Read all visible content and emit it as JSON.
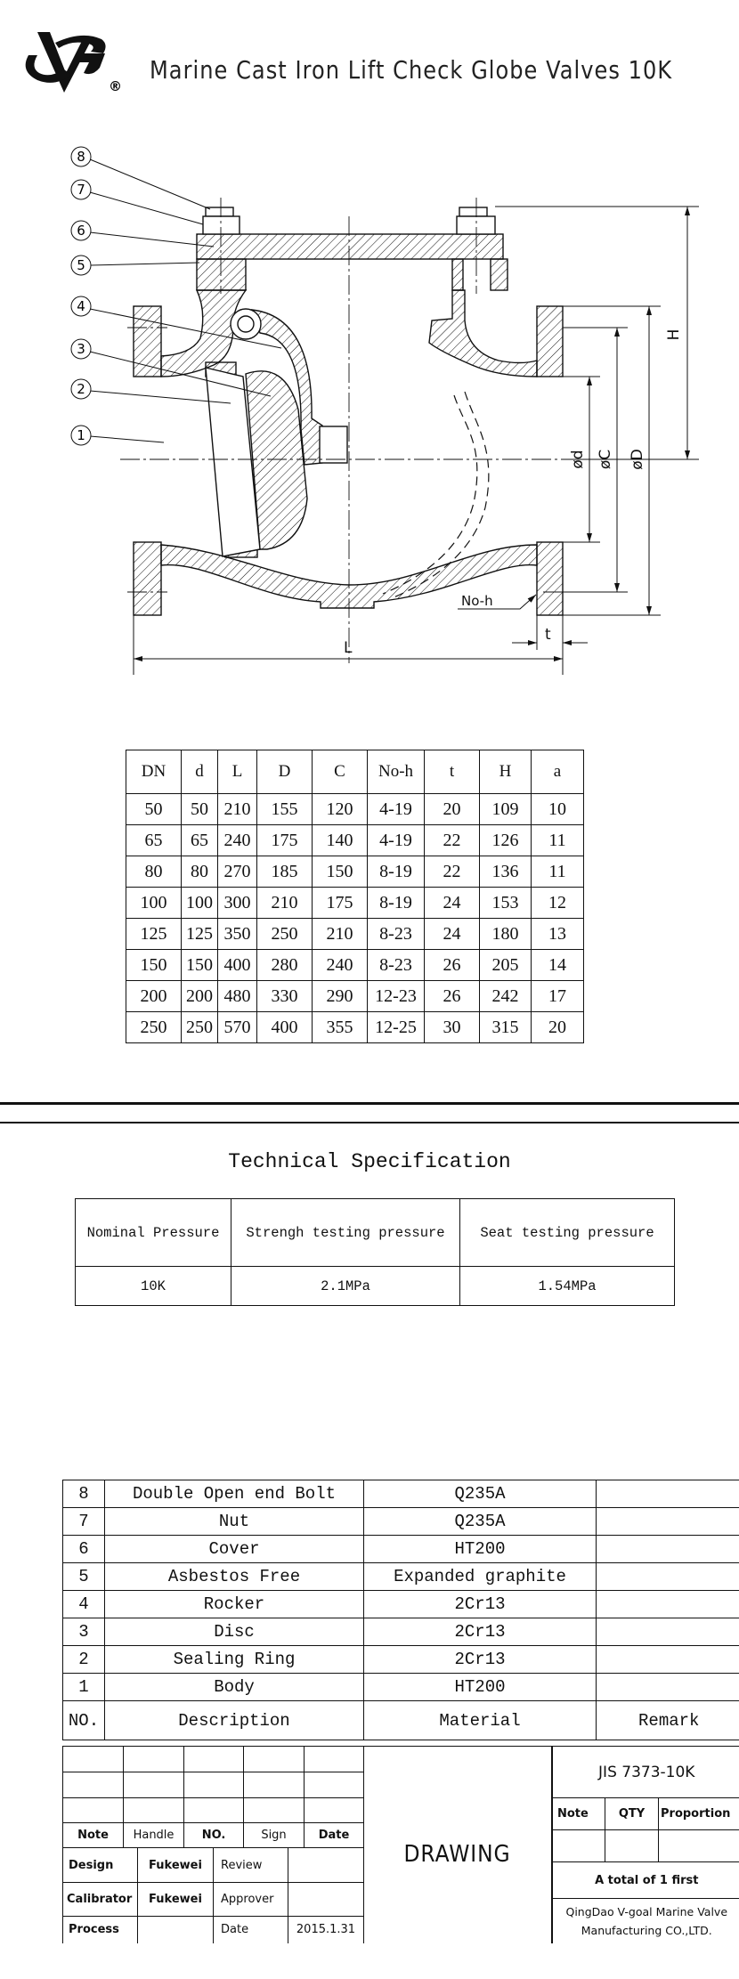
{
  "header": {
    "title": "Marine Cast Iron Lift Check Globe Valves 10K",
    "logo_mark": "®"
  },
  "drawing": {
    "callouts": [
      "8",
      "7",
      "6",
      "5",
      "4",
      "3",
      "2",
      "1"
    ],
    "labels": {
      "H": "H",
      "d": "ød",
      "C": "øC",
      "D": "øD",
      "noh": "No-h",
      "t": "t",
      "L": "L"
    }
  },
  "dimension_table": {
    "headers": [
      "DN",
      "d",
      "L",
      "D",
      "C",
      "No-h",
      "t",
      "H",
      "a"
    ],
    "rows": [
      [
        "50",
        "50",
        "210",
        "155",
        "120",
        "4-19",
        "20",
        "109",
        "10"
      ],
      [
        "65",
        "65",
        "240",
        "175",
        "140",
        "4-19",
        "22",
        "126",
        "11"
      ],
      [
        "80",
        "80",
        "270",
        "185",
        "150",
        "8-19",
        "22",
        "136",
        "11"
      ],
      [
        "100",
        "100",
        "300",
        "210",
        "175",
        "8-19",
        "24",
        "153",
        "12"
      ],
      [
        "125",
        "125",
        "350",
        "250",
        "210",
        "8-23",
        "24",
        "180",
        "13"
      ],
      [
        "150",
        "150",
        "400",
        "280",
        "240",
        "8-23",
        "26",
        "205",
        "14"
      ],
      [
        "200",
        "200",
        "480",
        "330",
        "290",
        "12-23",
        "26",
        "242",
        "17"
      ],
      [
        "250",
        "250",
        "570",
        "400",
        "355",
        "12-25",
        "30",
        "315",
        "20"
      ]
    ]
  },
  "spec": {
    "title": "Technical Specification",
    "headers": [
      "Nominal Pressure",
      "Strengh testing pressure",
      "Seat testing pressure"
    ],
    "values": [
      "10K",
      "2.1MPa",
      "1.54MPa"
    ]
  },
  "parts": {
    "rows": [
      {
        "no": "8",
        "description": "Double Open end Bolt",
        "material": "Q235A",
        "remark": ""
      },
      {
        "no": "7",
        "description": "Nut",
        "material": "Q235A",
        "remark": ""
      },
      {
        "no": "6",
        "description": "Cover",
        "material": "HT200",
        "remark": ""
      },
      {
        "no": "5",
        "description": "Asbestos Free",
        "material": "Expanded graphite",
        "remark": ""
      },
      {
        "no": "4",
        "description": "Rocker",
        "material": "2Cr13",
        "remark": ""
      },
      {
        "no": "3",
        "description": "Disc",
        "material": "2Cr13",
        "remark": ""
      },
      {
        "no": "2",
        "description": "Sealing Ring",
        "material": "2Cr13",
        "remark": ""
      },
      {
        "no": "1",
        "description": "Body",
        "material": "HT200",
        "remark": ""
      }
    ],
    "header": {
      "no": "NO.",
      "description": "Description",
      "material": "Material",
      "remark": "Remark"
    }
  },
  "title_block": {
    "revision_headers": [
      "Note",
      "Handle",
      "NO.",
      "Sign",
      "Date"
    ],
    "design_label": "Design",
    "design_name": "Fukewei",
    "review_label": "Review",
    "calibrator_label": "Calibrator",
    "calibrator_name": "Fukewei",
    "approver_label": "Approver",
    "process_label": "Process",
    "date_label": "Date",
    "date_value": "2015.1.31",
    "drawing_label": "DRAWING",
    "standard": "JIS 7373-10K",
    "info_headers": [
      "Note",
      "QTY",
      "Proportion"
    ],
    "total": "A total of 1 first",
    "company_line1": "QingDao V-goal Marine Valve",
    "company_line2": "Manufacturing CO.,LTD."
  }
}
